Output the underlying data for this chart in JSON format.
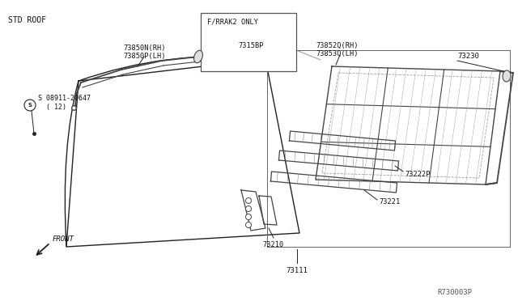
{
  "bg_color": "#ffffff",
  "lc": "#222222",
  "plc": "#444444",
  "title_std_roof": "STD ROOF",
  "label_frrak2": "F/RRAK2 ONLY",
  "pn_7315BP": "7315BP",
  "pn_73850N": "73850N(RH)\n73850P(LH)",
  "pn_08911": "S 08911-20647\n  ( 12)",
  "pn_73520": "73852Q(RH)\n73853Q(LH)",
  "pn_73230": "73230",
  "pn_73222P": "73222P",
  "pn_73221": "73221",
  "pn_73210": "73210",
  "pn_73111": "73111",
  "label_front": "FRONT",
  "watermark": "R730003P",
  "fig_width": 6.4,
  "fig_height": 3.72,
  "dpi": 100
}
